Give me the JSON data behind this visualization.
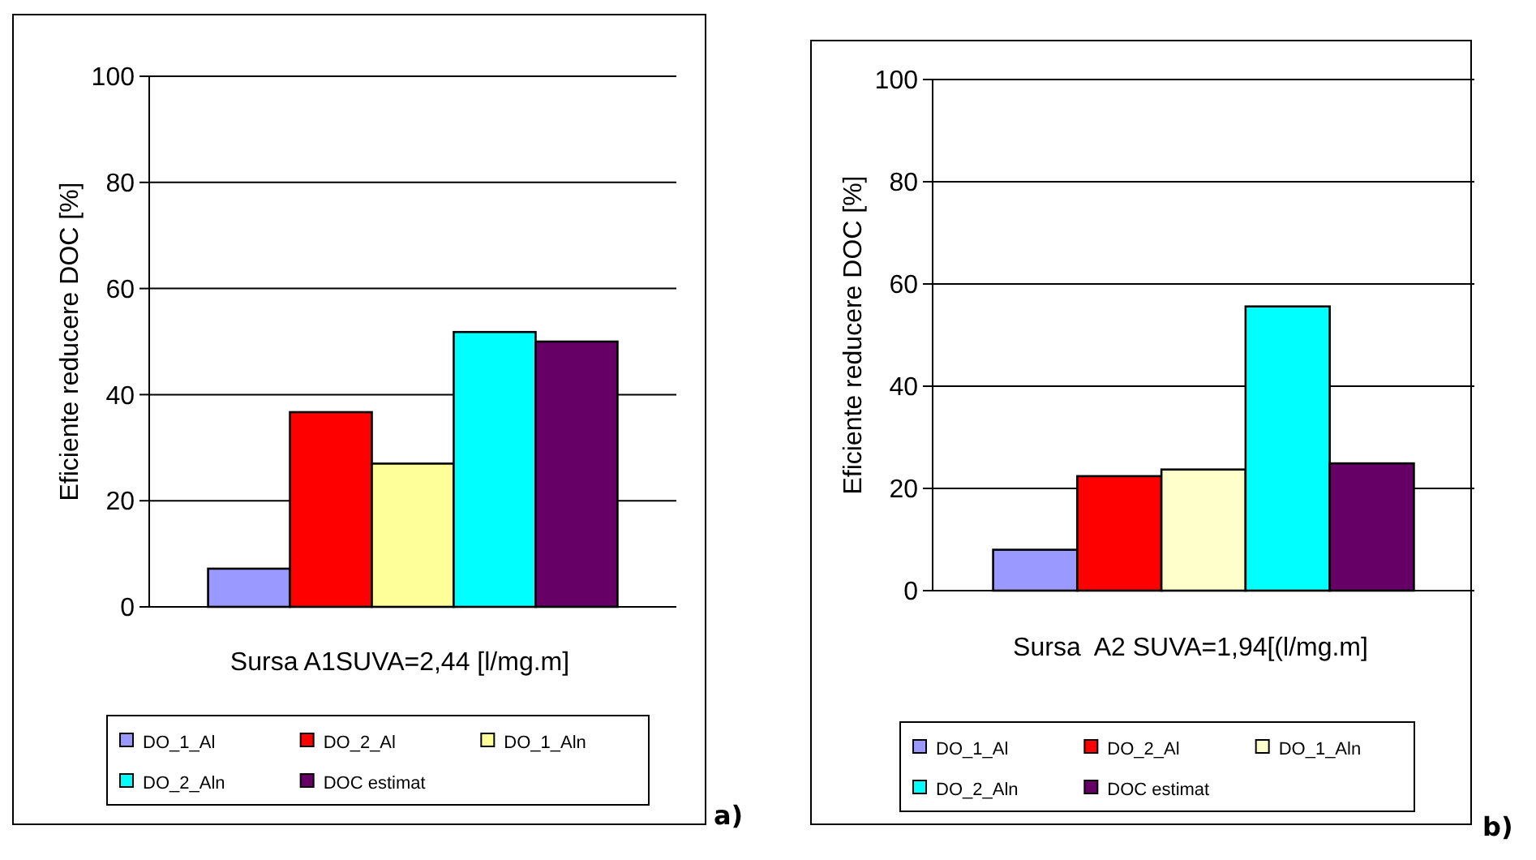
{
  "chart_data": [
    {
      "type": "bar",
      "categories": [
        null
      ],
      "xlabel": "Sursa A1SUVA=2,44 [l/mg.m]",
      "ylabel": "Eficiente reducere DOC [%]",
      "ylim": [
        0,
        100
      ],
      "yticks": [
        0,
        20,
        40,
        60,
        80,
        100
      ],
      "grid": "y",
      "legend": "bottom",
      "annotations": [
        "a)"
      ],
      "series": [
        {
          "name": "DO_1_Al",
          "color": "#9999ff",
          "values": [
            7.2
          ]
        },
        {
          "name": "DO_2_Al",
          "color": "#ff0000",
          "values": [
            36.7
          ]
        },
        {
          "name": "DO_1_Aln",
          "color": "#ffff99",
          "values": [
            27.0
          ]
        },
        {
          "name": "DO_2_Aln",
          "color": "#00ffff",
          "values": [
            51.8
          ]
        },
        {
          "name": "DOC estimat",
          "color": "#660066",
          "values": [
            50.0
          ]
        }
      ]
    },
    {
      "type": "bar",
      "categories": [
        null
      ],
      "xlabel": "Sursa  A2 SUVA=1,94[(l/mg.m]",
      "ylabel": "Eficiente reducere DOC [%]",
      "ylim": [
        0,
        100
      ],
      "yticks": [
        0,
        20,
        40,
        60,
        80,
        100
      ],
      "grid": "y",
      "legend": "bottom",
      "annotations": [
        "b)"
      ],
      "series": [
        {
          "name": "DO_1_Al",
          "color": "#9999ff",
          "values": [
            8.0
          ]
        },
        {
          "name": "DO_2_Al",
          "color": "#ff0000",
          "values": [
            22.4
          ]
        },
        {
          "name": "DO_1_Aln",
          "color": "#ffffcc",
          "values": [
            23.7
          ]
        },
        {
          "name": "DO_2_Aln",
          "color": "#00ffff",
          "values": [
            55.6
          ]
        },
        {
          "name": "DOC estimat",
          "color": "#660066",
          "values": [
            24.9
          ]
        }
      ]
    }
  ]
}
